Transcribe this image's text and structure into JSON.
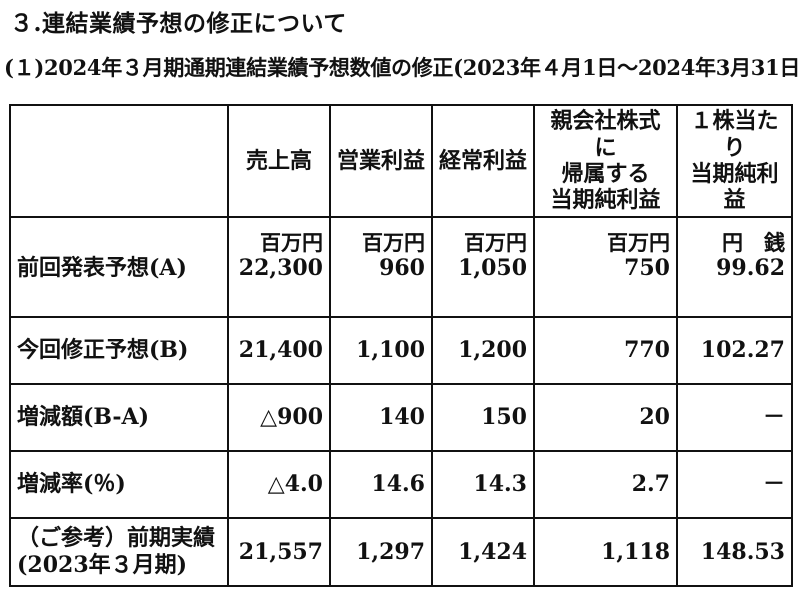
{
  "heading": "３.連結業績予想の修正について",
  "subheading": "(１)2024年３月期通期連結業績予想数値の修正(2023年４月1日～2024年3月31日)",
  "table": {
    "headers": [
      "",
      "売上高",
      "営業利益",
      "経常利益",
      "親会社株式に\n帰属する\n当期純利益",
      "１株当たり\n当期純利益"
    ],
    "units": [
      "",
      "百万円",
      "百万円",
      "百万円",
      "百万円",
      "円　銭"
    ],
    "rows": [
      {
        "label": "前回発表予想(A)",
        "cells": [
          "22,300",
          "960",
          "1,050",
          "750",
          "99.62"
        ]
      },
      {
        "label": "今回修正予想(B)",
        "cells": [
          "21,400",
          "1,100",
          "1,200",
          "770",
          "102.27"
        ]
      },
      {
        "label": "増減額(B-A)",
        "cells": [
          "△900",
          "140",
          "150",
          "20",
          "－"
        ]
      },
      {
        "label": "増減率(％)",
        "cells": [
          "△4.0",
          "14.6",
          "14.3",
          "2.7",
          "－"
        ]
      },
      {
        "label": "（ご参考）前期実績\n(2023年３月期)",
        "cells": [
          "21,557",
          "1,297",
          "1,424",
          "1,118",
          "148.53"
        ]
      }
    ]
  }
}
